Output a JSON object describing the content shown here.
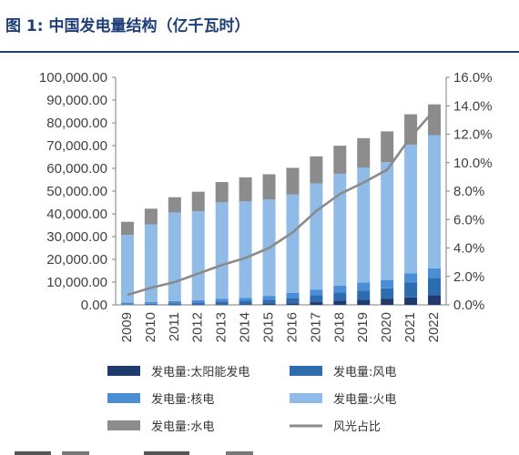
{
  "title": "图 1:  中国发电量结构（亿千瓦时）",
  "colors": {
    "title": "#1f3f78",
    "solar": "#1f3a6e",
    "wind": "#2e6cb0",
    "nuclear": "#4a8fd6",
    "thermal": "#8fbbe6",
    "hydro": "#8c8c8c",
    "ratio": "#8a8a8a",
    "axis": "#7f7f7f"
  },
  "chart_data": {
    "type": "bar",
    "stacked": true,
    "categories": [
      "2009",
      "2010",
      "2011",
      "2012",
      "2013",
      "2014",
      "2015",
      "2016",
      "2017",
      "2018",
      "2019",
      "2020",
      "2021",
      "2022"
    ],
    "series": [
      {
        "name": "发电量:太阳能发电",
        "key": "solar",
        "axis": "left",
        "values": [
          0,
          0,
          10,
          40,
          90,
          230,
          390,
          660,
          1180,
          1780,
          2240,
          2610,
          3270,
          4270
        ]
      },
      {
        "name": "发电量:风电",
        "key": "wind",
        "axis": "left",
        "values": [
          270,
          490,
          740,
          1030,
          1380,
          1560,
          1860,
          2410,
          3050,
          3660,
          4060,
          4670,
          6560,
          7630
        ]
      },
      {
        "name": "发电量:核电",
        "key": "nuclear",
        "axis": "left",
        "values": [
          700,
          740,
          870,
          980,
          1120,
          1330,
          1710,
          2130,
          2480,
          2950,
          3480,
          3660,
          4080,
          4180
        ]
      },
      {
        "name": "发电量:火电",
        "key": "thermal",
        "axis": "left",
        "values": [
          29830,
          34170,
          39000,
          39110,
          42470,
          42340,
          42310,
          43270,
          46630,
          49230,
          50470,
          51770,
          56460,
          58530
        ]
      },
      {
        "name": "发电量:水电",
        "key": "hydro",
        "axis": "left",
        "values": [
          5720,
          6870,
          6680,
          8560,
          8920,
          10600,
          11130,
          11750,
          11930,
          12320,
          13020,
          13550,
          13390,
          13520
        ]
      },
      {
        "name": "风光占比",
        "key": "ratio",
        "axis": "right",
        "type": "line",
        "values": [
          0.7,
          1.2,
          1.6,
          2.2,
          2.8,
          3.3,
          4.0,
          5.1,
          6.6,
          7.8,
          8.6,
          9.5,
          11.8,
          13.7
        ]
      }
    ],
    "y_left": {
      "min": 0,
      "max": 100000,
      "ticks": [
        "0.00",
        "10,000.00",
        "20,000.00",
        "30,000.00",
        "40,000.00",
        "50,000.00",
        "60,000.00",
        "70,000.00",
        "80,000.00",
        "90,000.00",
        "100,000.00"
      ]
    },
    "y_right": {
      "min": 0,
      "max": 16,
      "ticks": [
        "0.0%",
        "2.0%",
        "4.0%",
        "6.0%",
        "8.0%",
        "10.0%",
        "12.0%",
        "14.0%",
        "16.0%"
      ]
    },
    "grid": false,
    "legend_position": "bottom"
  },
  "legend": [
    {
      "label": "发电量:太阳能发电",
      "key": "solar",
      "kind": "bar"
    },
    {
      "label": "发电量:风电",
      "key": "wind",
      "kind": "bar"
    },
    {
      "label": "发电量:核电",
      "key": "nuclear",
      "kind": "bar"
    },
    {
      "label": "发电量:火电",
      "key": "thermal",
      "kind": "bar"
    },
    {
      "label": "发电量:水电",
      "key": "hydro",
      "kind": "bar"
    },
    {
      "label": "风光占比",
      "key": "ratio",
      "kind": "line"
    }
  ]
}
